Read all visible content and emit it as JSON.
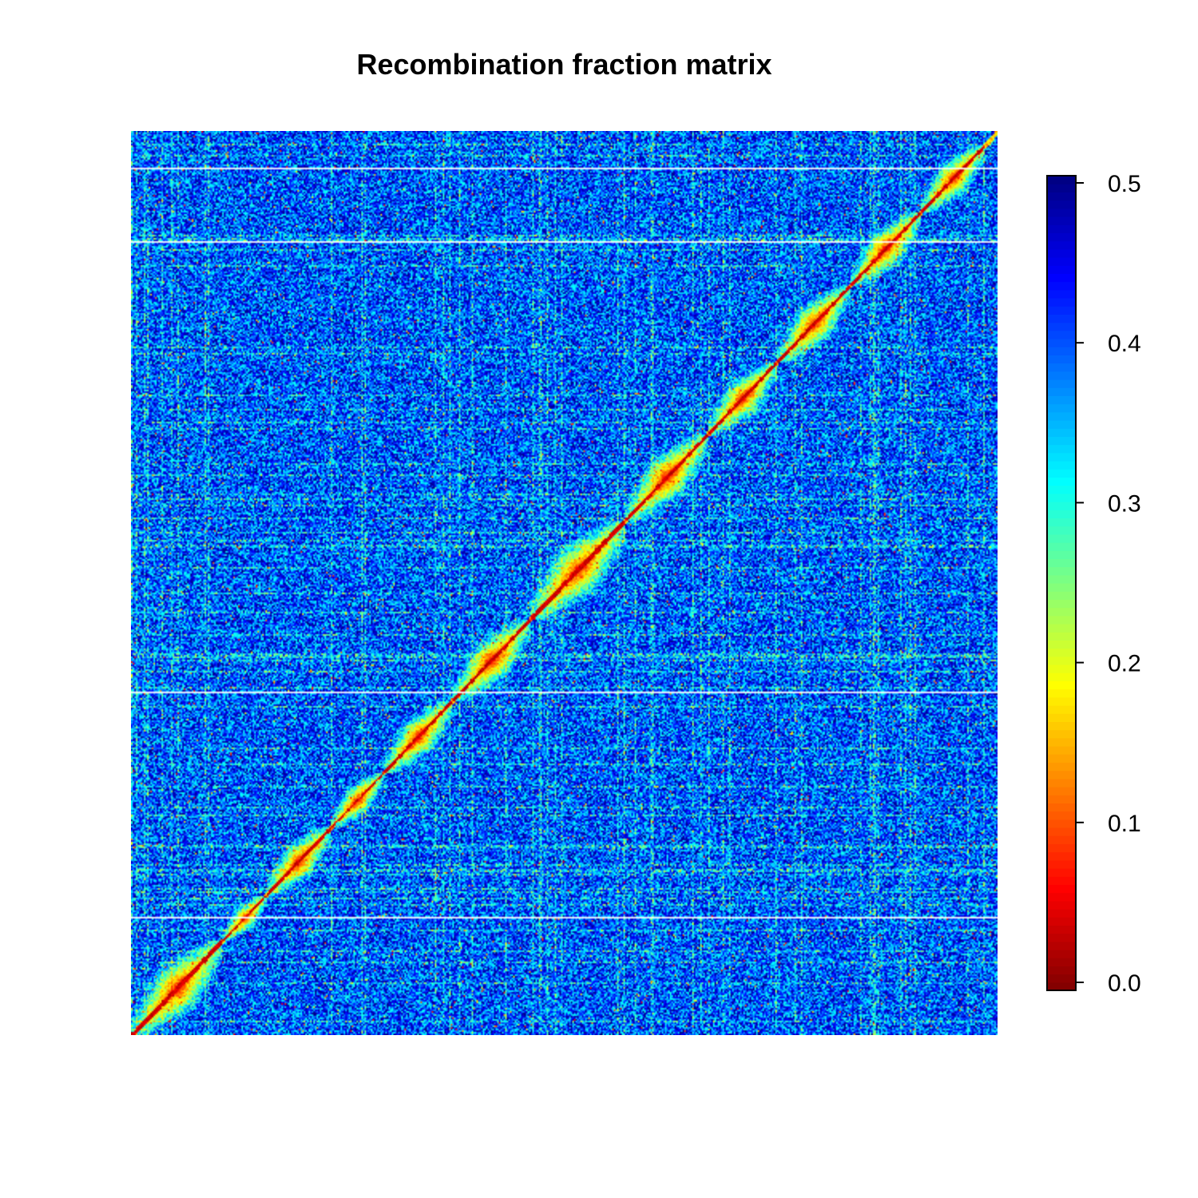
{
  "chart_data": {
    "type": "heatmap",
    "title": "Recombination fraction matrix",
    "xlabel": "",
    "ylabel": "",
    "matrix_size": 1000,
    "value_range": [
      0.0,
      0.5
    ],
    "low_recombination_blocks": [
      {
        "start": 0,
        "end": 105
      },
      {
        "start": 105,
        "end": 155
      },
      {
        "start": 155,
        "end": 230
      },
      {
        "start": 230,
        "end": 290
      },
      {
        "start": 290,
        "end": 370
      },
      {
        "start": 370,
        "end": 460
      },
      {
        "start": 460,
        "end": 570
      },
      {
        "start": 570,
        "end": 665
      },
      {
        "start": 665,
        "end": 745
      },
      {
        "start": 745,
        "end": 830
      },
      {
        "start": 830,
        "end": 910
      },
      {
        "start": 910,
        "end": 985
      }
    ],
    "missing_marker_lines": [
      130,
      380,
      878,
      960
    ],
    "colorbar": {
      "palette": "jet (reversed): 0.0 dark red to 0.5 dark blue",
      "ticks": [
        "0.0",
        "0.1",
        "0.2",
        "0.3",
        "0.4",
        "0.5"
      ],
      "tick_values": [
        0.0,
        0.1,
        0.2,
        0.3,
        0.4,
        0.5
      ],
      "colors": [
        "#7f0000",
        "#ff0000",
        "#ff7f00",
        "#ffff00",
        "#7fff7f",
        "#00ffff",
        "#007fff",
        "#0000ff",
        "#00007f"
      ]
    }
  }
}
